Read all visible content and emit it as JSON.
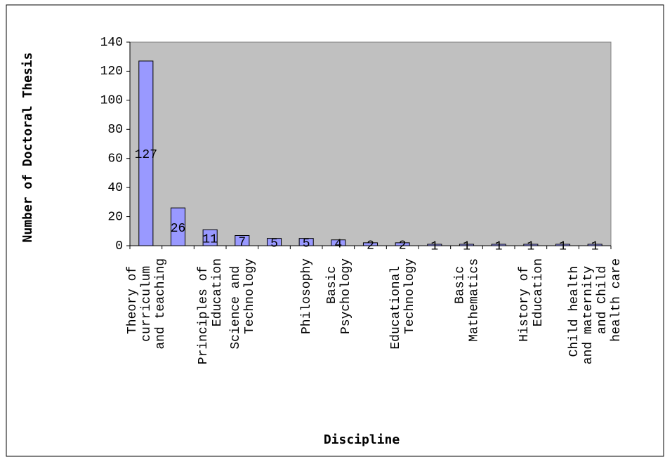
{
  "chart_data": {
    "type": "bar",
    "y_label": "Number of Doctoral Thesis",
    "x_label": "Discipline",
    "categories": [
      "Theory of curriculum and teaching",
      null,
      "Principles of Education",
      "Science and Technology",
      null,
      "Philosophy",
      "Basic Psychology",
      null,
      "Educational Technology",
      null,
      "Basic Mathematics",
      null,
      "History of Education",
      null,
      "Child health and maternity and Child health care"
    ],
    "values": [
      127,
      26,
      11,
      7,
      5,
      5,
      4,
      2,
      2,
      1,
      1,
      1,
      1,
      1,
      1
    ],
    "color": "#9999ff",
    "plot_background": "#c0c0c0",
    "ylim": [
      0,
      140
    ],
    "yticks": [
      0,
      20,
      40,
      60,
      80,
      100,
      120,
      140
    ]
  }
}
